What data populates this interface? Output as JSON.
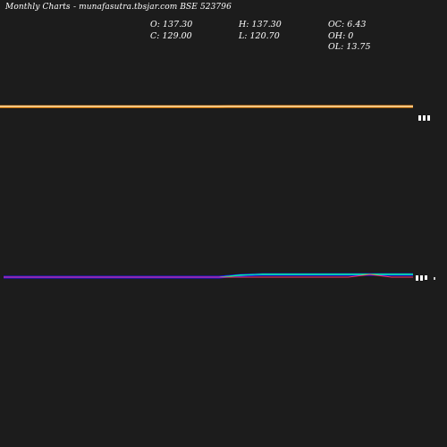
{
  "header": {
    "title": "Monthly Charts",
    "source": "-  munafasutra.tbsjar.com BSE 523796"
  },
  "ohlc": {
    "open": {
      "label": "O:",
      "value": "137.30"
    },
    "high": {
      "label": "H:",
      "value": "137.30"
    },
    "oc": {
      "label": "OC:",
      "value": "6.43"
    },
    "close": {
      "label": "C:",
      "value": "129.00"
    },
    "low": {
      "label": "L:",
      "value": "120.70"
    },
    "oh": {
      "label": "OH:",
      "value": "0"
    },
    "ol": {
      "label": "OL:",
      "value": "13.75"
    }
  },
  "chart_data": {
    "type": "line",
    "title": "",
    "xlabel": "",
    "ylabel": "",
    "grid": false,
    "legend": "none",
    "panels": [
      {
        "name": "price",
        "series": [
          {
            "color": "#ff8c00",
            "style": "band",
            "values": [
              0.98,
              0.98,
              0.98,
              0.98,
              0.98,
              0.98,
              0.98,
              0.98,
              0.98,
              0.98,
              0.985,
              0.99,
              0.99,
              0.99,
              0.99,
              0.99,
              0.99,
              0.99,
              0.99,
              0.99
            ]
          },
          {
            "color": "#ffffff",
            "style": "line",
            "values": [
              1.0,
              1.0,
              1.0,
              1.0,
              1.0,
              1.0,
              1.0,
              1.0,
              1.0,
              1.0,
              1.0,
              1.0,
              1.0,
              1.0,
              1.0,
              1.0,
              1.0,
              1.0,
              1.0,
              1.0
            ]
          }
        ],
        "ylim": [
          0,
          1
        ]
      },
      {
        "name": "indicator",
        "series": [
          {
            "color": "#1a1aff",
            "style": "band",
            "values": [
              0.0,
              0.0,
              0.0,
              0.0,
              0.0,
              0.0,
              0.0,
              0.0,
              0.0,
              0.0,
              0.0,
              0.2,
              0.3,
              0.3,
              0.3,
              0.3,
              0.3,
              0.3,
              0.3,
              0.3
            ]
          },
          {
            "color": "#00ffff",
            "style": "line",
            "values": [
              0.0,
              0.0,
              0.0,
              0.0,
              0.0,
              0.0,
              0.0,
              0.0,
              0.0,
              0.0,
              0.0,
              0.25,
              0.3,
              0.3,
              0.3,
              0.3,
              0.3,
              0.3,
              0.3,
              0.3
            ]
          },
          {
            "color": "#00ff66",
            "style": "line",
            "values": [
              0.0,
              0.0,
              0.0,
              0.0,
              0.0,
              0.0,
              0.0,
              0.0,
              0.0,
              0.0,
              0.0,
              0.2,
              0.35,
              0.35,
              0.35,
              0.35,
              0.35,
              0.35,
              0.35,
              0.35
            ]
          },
          {
            "color": "#ff3366",
            "style": "line",
            "values": [
              0.0,
              0.0,
              0.0,
              0.0,
              0.0,
              0.0,
              0.0,
              0.0,
              0.0,
              0.0,
              0.0,
              0.0,
              0.0,
              0.0,
              0.0,
              0.0,
              0.0,
              0.3,
              0.0,
              0.0
            ]
          }
        ],
        "ylim": [
          -1,
          1
        ]
      }
    ]
  }
}
